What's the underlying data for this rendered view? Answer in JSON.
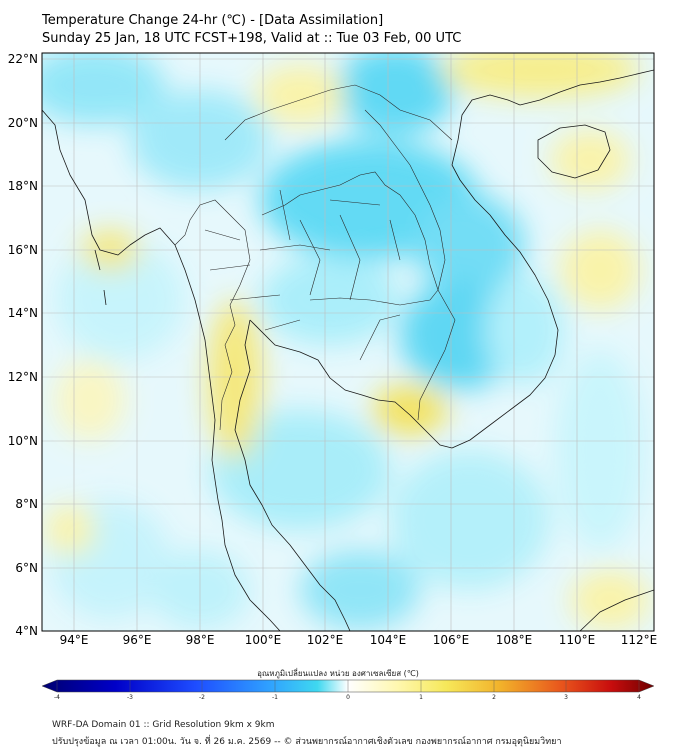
{
  "title": {
    "line1": "Temperature Change 24-hr (℃) - [Data Assimilation]",
    "line2": "Sunday 25 Jan, 18 UTC FCST+198, Valid at :: Tue 03 Feb, 00 UTC"
  },
  "map": {
    "lat_labels": [
      "22°N",
      "20°N",
      "18°N",
      "16°N",
      "14°N",
      "12°N",
      "10°N",
      "8°N",
      "6°N",
      "4°N"
    ],
    "lon_labels": [
      "94°E",
      "96°E",
      "98°E",
      "100°E",
      "102°E",
      "104°E",
      "106°E",
      "108°E",
      "110°E",
      "112°E"
    ],
    "lat_range": [
      4,
      22.2
    ],
    "lon_range": [
      93,
      112.5
    ],
    "colors": {
      "cool": "#3fd0f0",
      "warm": "#f5e45a",
      "neutral": "#ffffff",
      "grid": "#bbbbbb",
      "border": "#222222"
    }
  },
  "colorbar": {
    "title": "อุณหภูมิเปลี่ยนแปลง หน่วย องศาเซลเซียส (℃)",
    "ticks": [
      "-4",
      "-3",
      "-2",
      "-1",
      "0",
      "1",
      "2",
      "3",
      "4"
    ],
    "colors": [
      "#000070",
      "#0000c8",
      "#1e4cff",
      "#2fa0ff",
      "#3fd8f0",
      "#b8f4ff",
      "#ffffff",
      "#fff8b0",
      "#f6e85a",
      "#f2b12a",
      "#e8541c",
      "#c80d0d",
      "#6e0000"
    ]
  },
  "footer": {
    "line1": "WRF-DA Domain 01 :: Grid Resolution 9km x 9km",
    "line2": "ปรับปรุงข้อมูล ณ เวลา 01:00น. วัน จ. ที่ 26 ม.ค. 2569 -- © ส่วนพยากรณ์อากาศเชิงตัวเลข กองพยากรณ์อากาศ กรมอุตุนิยมวิทยา"
  }
}
